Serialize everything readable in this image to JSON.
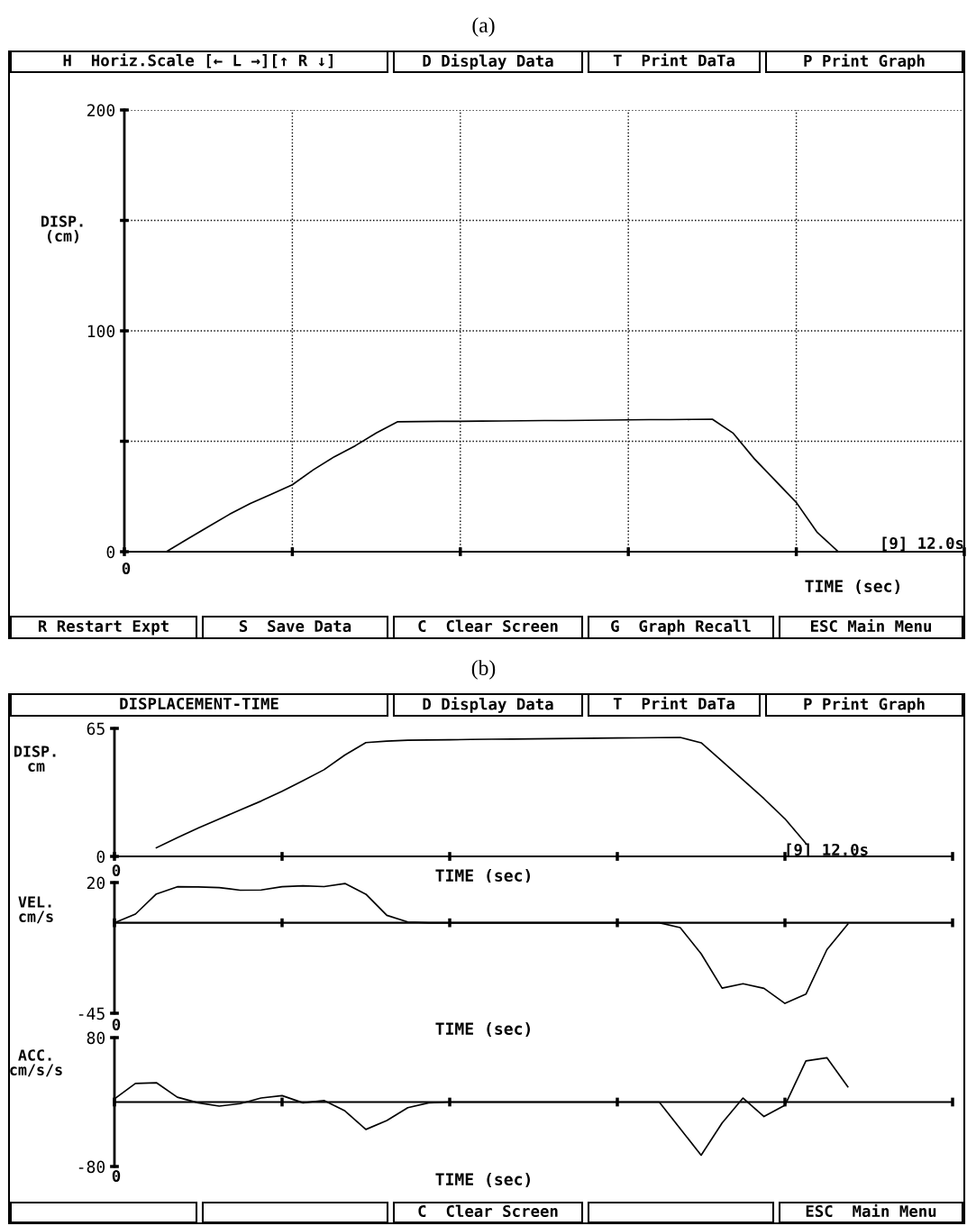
{
  "chart_data": [
    {
      "type": "line",
      "title": "(a)",
      "xlabel": "TIME (sec)",
      "ylabel": "DISP.\n(cm)",
      "annotations": [
        "H  Horiz.Scale [← L →][↑ R ↓]",
        "D Display Data",
        "T  Print DaTa",
        "P Print Graph",
        "R Restart Expt",
        "S  Save Data",
        "C  Clear Screen",
        "G  Graph Recall",
        "ESC Main Menu",
        "[9] 12.0s",
        "0"
      ],
      "categories": [
        null,
        null,
        null,
        null,
        null,
        null,
        null,
        null,
        null,
        null,
        null,
        null,
        null,
        null,
        null,
        null,
        null,
        null,
        null,
        null,
        null,
        null,
        null,
        null,
        null,
        null,
        null,
        null,
        null,
        null,
        null,
        null,
        null,
        null,
        null,
        null,
        null,
        null,
        null,
        null,
        null
      ],
      "series": [
        {
          "color": "#000000",
          "values": [
            null,
            null,
            0,
            5.7,
            11.3,
            16.9,
            21.8,
            26,
            30.3,
            37.1,
            43,
            48,
            53.8,
            58.8,
            58.9,
            59,
            59,
            59.1,
            59.2,
            59.3,
            59.4,
            59.4,
            59.5,
            59.6,
            59.7,
            59.8,
            59.8,
            59.9,
            60,
            53.6,
            42.1,
            32.2,
            22.3,
            8.7,
            0,
            null,
            null,
            null,
            null,
            null,
            null
          ]
        }
      ],
      "ylim": [
        0,
        200
      ],
      "yticks": [
        0,
        {
          "value": 50,
          "label": null
        },
        100,
        {
          "value": 150,
          "label": null
        },
        200
      ],
      "grid": true,
      "legend": false,
      "marker": "none",
      "line_style": "solid"
    },
    {
      "type": "line",
      "title": "(b)",
      "xlabel": "TIME (sec)",
      "ylabel": "DISP.\ncm",
      "annotations": [
        "DISPLACEMENT-TIME",
        "D Display Data",
        "T  Print DaTa",
        "P Print Graph",
        "[9] 12.0s",
        "0"
      ],
      "categories": [
        null,
        null,
        null,
        null,
        null,
        null,
        null,
        null,
        null,
        null,
        null,
        null,
        null,
        null,
        null,
        null,
        null,
        null,
        null,
        null,
        null,
        null,
        null,
        null,
        null,
        null,
        null,
        null,
        null,
        null,
        null,
        null,
        null,
        null,
        null,
        null,
        null,
        null,
        null,
        null,
        null
      ],
      "series": [
        {
          "color": "#000000",
          "values": [
            null,
            null,
            4.4,
            9.5,
            14.4,
            19,
            23.6,
            28.1,
            33.1,
            38.5,
            44,
            51.5,
            57.8,
            58.5,
            59,
            59.1,
            59.2,
            59.4,
            59.5,
            59.6,
            59.7,
            59.8,
            59.9,
            60,
            60.1,
            60.2,
            60.3,
            60.4,
            57.7,
            48.3,
            38.8,
            29.3,
            19.1,
            6.6,
            null,
            null,
            null,
            null,
            null,
            null,
            null
          ]
        }
      ],
      "ylim": [
        0,
        65
      ],
      "yticks": [
        0,
        65
      ],
      "legend": false,
      "marker": "none",
      "line_style": "solid"
    },
    {
      "type": "line",
      "xlabel": "TIME (sec)",
      "ylabel": "VEL.\ncm/s",
      "annotations": [
        "0"
      ],
      "categories": [
        null,
        null,
        null,
        null,
        null,
        null,
        null,
        null,
        null,
        null,
        null,
        null,
        null,
        null,
        null,
        null,
        null,
        null,
        null,
        null,
        null,
        null,
        null,
        null,
        null,
        null,
        null,
        null,
        null,
        null,
        null,
        null,
        null,
        null,
        null,
        null,
        null,
        null,
        null,
        null,
        null
      ],
      "series": [
        {
          "color": "#000000",
          "values": [
            0,
            4.3,
            14.3,
            17.9,
            17.8,
            17.5,
            16.2,
            16.3,
            17.9,
            18.4,
            18,
            19.5,
            14.2,
            3.7,
            0.4,
            0,
            0,
            0,
            0,
            0,
            0,
            0,
            0,
            0,
            0,
            0,
            0,
            -2.4,
            -15.4,
            -32.5,
            -30.3,
            -32.6,
            -40.1,
            -35.5,
            -13.4,
            -0.7,
            null,
            null,
            null,
            null,
            null
          ]
        }
      ],
      "ylim": [
        -45,
        20
      ],
      "yticks": [
        -45,
        20
      ],
      "legend": false,
      "marker": "none",
      "line_style": "solid"
    },
    {
      "type": "line",
      "xlabel": "TIME (sec)",
      "ylabel": "ACC.\ncm/s/s",
      "annotations": [
        "C  Clear Screen",
        "ESC  Main Menu",
        "0"
      ],
      "categories": [
        null,
        null,
        null,
        null,
        null,
        null,
        null,
        null,
        null,
        null,
        null,
        null,
        null,
        null,
        null,
        null,
        null,
        null,
        null,
        null,
        null,
        null,
        null,
        null,
        null,
        null,
        null,
        null,
        null,
        null,
        null,
        null,
        null,
        null,
        null,
        null,
        null,
        null,
        null,
        null,
        null
      ],
      "series": [
        {
          "color": "#000000",
          "values": [
            4,
            23,
            24,
            6,
            -1,
            -5,
            -2,
            5,
            8,
            -1,
            2,
            -11,
            -34,
            -23,
            -7,
            -1,
            0,
            0,
            0,
            0,
            0,
            0,
            0,
            0,
            0,
            0,
            0,
            -33,
            -66,
            -26,
            5,
            -18,
            -4,
            51,
            55,
            19,
            null,
            null,
            null,
            null,
            null
          ]
        }
      ],
      "ylim": [
        -80,
        80
      ],
      "yticks": [
        -80,
        80
      ],
      "legend": false,
      "marker": "none",
      "line_style": "solid"
    }
  ]
}
